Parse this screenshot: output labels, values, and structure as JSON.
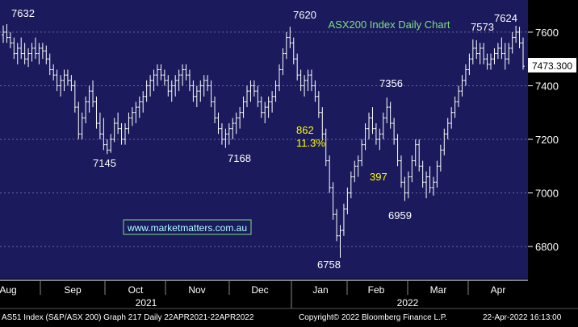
{
  "chart_data": {
    "type": "ohlc",
    "title": "ASX200 Index Daily Chart",
    "watermark": "www.marketmatters.com.au",
    "last_value_label": "7473.300",
    "ylim": [
      6680,
      7720
    ],
    "y_ticks": [
      {
        "value": 7600,
        "label": "7600"
      },
      {
        "value": 7400,
        "label": "7400"
      },
      {
        "value": 7200,
        "label": "7200"
      },
      {
        "value": 7000,
        "label": "7000"
      },
      {
        "value": 6800,
        "label": "6800"
      }
    ],
    "months": [
      "Aug",
      "Sep",
      "Oct",
      "Nov",
      "Dec",
      "Jan",
      "Feb",
      "Mar",
      "Apr"
    ],
    "years": [
      "2021",
      "2022"
    ],
    "series": [
      {
        "values": [
          [
            7590,
            7625,
            7560,
            7600
          ],
          [
            7600,
            7630,
            7560,
            7580
          ],
          [
            7580,
            7600,
            7540,
            7560
          ],
          [
            7560,
            7580,
            7500,
            7520
          ],
          [
            7520,
            7560,
            7480,
            7540
          ],
          [
            7540,
            7580,
            7500,
            7520
          ],
          [
            7520,
            7560,
            7480,
            7500
          ],
          [
            7500,
            7540,
            7470,
            7520
          ],
          [
            7520,
            7560,
            7490,
            7540
          ],
          [
            7540,
            7580,
            7500,
            7520
          ],
          [
            7520,
            7560,
            7480,
            7540
          ],
          [
            7540,
            7560,
            7500,
            7530
          ],
          [
            7530,
            7550,
            7480,
            7500
          ],
          [
            7500,
            7520,
            7440,
            7460
          ],
          [
            7460,
            7480,
            7420,
            7440
          ],
          [
            7440,
            7460,
            7380,
            7400
          ],
          [
            7400,
            7440,
            7360,
            7420
          ],
          [
            7420,
            7460,
            7380,
            7440
          ],
          [
            7440,
            7460,
            7400,
            7420
          ],
          [
            7420,
            7440,
            7380,
            7400
          ],
          [
            7400,
            7420,
            7300,
            7320
          ],
          [
            7320,
            7340,
            7200,
            7220
          ],
          [
            7220,
            7300,
            7200,
            7280
          ],
          [
            7280,
            7360,
            7260,
            7340
          ],
          [
            7340,
            7400,
            7300,
            7380
          ],
          [
            7380,
            7420,
            7320,
            7340
          ],
          [
            7340,
            7360,
            7240,
            7260
          ],
          [
            7260,
            7300,
            7200,
            7220
          ],
          [
            7220,
            7280,
            7160,
            7180
          ],
          [
            7180,
            7200,
            7145,
            7160
          ],
          [
            7160,
            7220,
            7150,
            7200
          ],
          [
            7200,
            7280,
            7190,
            7260
          ],
          [
            7260,
            7300,
            7220,
            7240
          ],
          [
            7240,
            7260,
            7180,
            7200
          ],
          [
            7200,
            7260,
            7180,
            7240
          ],
          [
            7240,
            7300,
            7220,
            7280
          ],
          [
            7280,
            7320,
            7250,
            7300
          ],
          [
            7300,
            7340,
            7260,
            7320
          ],
          [
            7320,
            7360,
            7280,
            7340
          ],
          [
            7340,
            7380,
            7300,
            7360
          ],
          [
            7360,
            7420,
            7340,
            7400
          ],
          [
            7400,
            7440,
            7360,
            7420
          ],
          [
            7420,
            7460,
            7380,
            7440
          ],
          [
            7440,
            7480,
            7400,
            7460
          ],
          [
            7460,
            7480,
            7420,
            7440
          ],
          [
            7440,
            7460,
            7400,
            7420
          ],
          [
            7420,
            7440,
            7360,
            7380
          ],
          [
            7380,
            7420,
            7340,
            7400
          ],
          [
            7400,
            7440,
            7360,
            7420
          ],
          [
            7420,
            7460,
            7380,
            7440
          ],
          [
            7440,
            7480,
            7400,
            7460
          ],
          [
            7460,
            7480,
            7420,
            7440
          ],
          [
            7440,
            7460,
            7380,
            7400
          ],
          [
            7400,
            7420,
            7340,
            7360
          ],
          [
            7360,
            7400,
            7320,
            7380
          ],
          [
            7380,
            7420,
            7340,
            7400
          ],
          [
            7400,
            7440,
            7360,
            7420
          ],
          [
            7420,
            7440,
            7380,
            7400
          ],
          [
            7400,
            7420,
            7320,
            7340
          ],
          [
            7340,
            7360,
            7260,
            7280
          ],
          [
            7280,
            7300,
            7220,
            7240
          ],
          [
            7240,
            7260,
            7180,
            7200
          ],
          [
            7200,
            7240,
            7168,
            7220
          ],
          [
            7220,
            7260,
            7180,
            7240
          ],
          [
            7240,
            7280,
            7200,
            7260
          ],
          [
            7260,
            7300,
            7220,
            7280
          ],
          [
            7280,
            7320,
            7240,
            7300
          ],
          [
            7300,
            7360,
            7280,
            7340
          ],
          [
            7340,
            7400,
            7320,
            7380
          ],
          [
            7380,
            7420,
            7340,
            7400
          ],
          [
            7400,
            7420,
            7360,
            7380
          ],
          [
            7380,
            7400,
            7320,
            7340
          ],
          [
            7340,
            7360,
            7280,
            7300
          ],
          [
            7300,
            7340,
            7260,
            7320
          ],
          [
            7320,
            7360,
            7280,
            7340
          ],
          [
            7340,
            7380,
            7300,
            7360
          ],
          [
            7360,
            7420,
            7340,
            7400
          ],
          [
            7400,
            7480,
            7380,
            7460
          ],
          [
            7460,
            7540,
            7440,
            7520
          ],
          [
            7520,
            7600,
            7500,
            7580
          ],
          [
            7580,
            7620,
            7540,
            7560
          ],
          [
            7560,
            7580,
            7480,
            7500
          ],
          [
            7500,
            7520,
            7420,
            7440
          ],
          [
            7440,
            7460,
            7380,
            7400
          ],
          [
            7400,
            7440,
            7360,
            7420
          ],
          [
            7420,
            7460,
            7380,
            7440
          ],
          [
            7440,
            7460,
            7380,
            7400
          ],
          [
            7400,
            7420,
            7340,
            7360
          ],
          [
            7360,
            7380,
            7280,
            7300
          ],
          [
            7300,
            7320,
            7200,
            7220
          ],
          [
            7220,
            7240,
            7100,
            7120
          ],
          [
            7120,
            7140,
            7000,
            7020
          ],
          [
            7020,
            7040,
            6900,
            6920
          ],
          [
            6920,
            6940,
            6820,
            6840
          ],
          [
            6840,
            6880,
            6758,
            6860
          ],
          [
            6860,
            6960,
            6840,
            6940
          ],
          [
            6940,
            7020,
            6920,
            7000
          ],
          [
            7000,
            7080,
            6980,
            7060
          ],
          [
            7060,
            7120,
            7040,
            7100
          ],
          [
            7100,
            7140,
            7060,
            7120
          ],
          [
            7120,
            7200,
            7100,
            7180
          ],
          [
            7180,
            7260,
            7160,
            7240
          ],
          [
            7240,
            7300,
            7200,
            7280
          ],
          [
            7280,
            7320,
            7220,
            7240
          ],
          [
            7240,
            7260,
            7180,
            7200
          ],
          [
            7200,
            7240,
            7160,
            7220
          ],
          [
            7220,
            7300,
            7200,
            7280
          ],
          [
            7280,
            7356,
            7260,
            7320
          ],
          [
            7320,
            7340,
            7240,
            7260
          ],
          [
            7260,
            7280,
            7180,
            7200
          ],
          [
            7200,
            7220,
            7100,
            7120
          ],
          [
            7120,
            7140,
            7020,
            7040
          ],
          [
            7040,
            7060,
            6970,
            7000
          ],
          [
            7000,
            7080,
            6980,
            7060
          ],
          [
            7060,
            7140,
            7040,
            7120
          ],
          [
            7120,
            7200,
            7100,
            7180
          ],
          [
            7180,
            7200,
            7080,
            7100
          ],
          [
            7100,
            7120,
            7020,
            7040
          ],
          [
            7040,
            7080,
            6980,
            7060
          ],
          [
            7060,
            7100,
            7000,
            7020
          ],
          [
            7020,
            7060,
            6990,
            7040
          ],
          [
            7040,
            7120,
            7020,
            7100
          ],
          [
            7100,
            7180,
            7080,
            7160
          ],
          [
            7160,
            7240,
            7140,
            7220
          ],
          [
            7220,
            7280,
            7200,
            7260
          ],
          [
            7260,
            7320,
            7240,
            7300
          ],
          [
            7300,
            7360,
            7280,
            7340
          ],
          [
            7340,
            7400,
            7320,
            7380
          ],
          [
            7380,
            7440,
            7360,
            7420
          ],
          [
            7420,
            7480,
            7400,
            7460
          ],
          [
            7460,
            7520,
            7440,
            7500
          ],
          [
            7500,
            7573,
            7480,
            7540
          ],
          [
            7540,
            7570,
            7500,
            7520
          ],
          [
            7520,
            7560,
            7480,
            7540
          ],
          [
            7540,
            7560,
            7480,
            7500
          ],
          [
            7500,
            7520,
            7460,
            7480
          ],
          [
            7480,
            7520,
            7460,
            7500
          ],
          [
            7500,
            7540,
            7480,
            7520
          ],
          [
            7520,
            7560,
            7500,
            7540
          ],
          [
            7540,
            7580,
            7500,
            7520
          ],
          [
            7520,
            7560,
            7460,
            7500
          ],
          [
            7500,
            7560,
            7480,
            7540
          ],
          [
            7540,
            7600,
            7520,
            7580
          ],
          [
            7580,
            7624,
            7560,
            7600
          ],
          [
            7600,
            7620,
            7540,
            7560
          ],
          [
            7560,
            7580,
            7460,
            7473
          ]
        ]
      }
    ],
    "annotations": [
      {
        "label": "7632",
        "color": "#ffffff"
      },
      {
        "label": "7145",
        "color": "#ffffff"
      },
      {
        "label": "7168",
        "color": "#ffffff"
      },
      {
        "label": "7620",
        "color": "#ffffff"
      },
      {
        "label": "862",
        "color": "#ffff00"
      },
      {
        "label": "11.3%",
        "color": "#ffff00"
      },
      {
        "label": "397",
        "color": "#ffff00"
      },
      {
        "label": "7356",
        "color": "#ffffff"
      },
      {
        "label": "6959",
        "color": "#ffffff"
      },
      {
        "label": "6758",
        "color": "#ffffff"
      },
      {
        "label": "7573",
        "color": "#ffffff"
      },
      {
        "label": "7624",
        "color": "#ffffff"
      }
    ],
    "colors": {
      "background": "#1a1a5c",
      "bars": "#ffffff",
      "grid": "#6a6aa0",
      "title": "#7fe07f",
      "watermark": "#b0ffff",
      "highlight": "#ffff00"
    }
  },
  "footer": {
    "left": "AS51 Index (S&P/ASX 200) Graph 217  Daily 22APR2021-22APR2022",
    "center": "Copyright© 2022 Bloomberg Finance L.P.",
    "right": "22-Apr-2022 16:13:00"
  }
}
